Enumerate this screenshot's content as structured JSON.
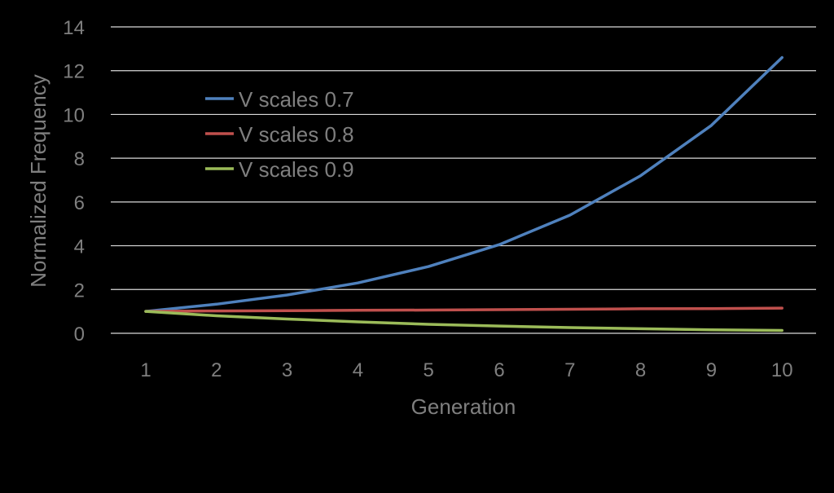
{
  "chart_data": {
    "type": "line",
    "title": "",
    "xlabel": "Generation",
    "ylabel": "Normalized Frequency",
    "x": [
      1,
      2,
      3,
      4,
      5,
      6,
      7,
      8,
      9,
      10
    ],
    "ylim": [
      0,
      14
    ],
    "yticks": [
      0,
      2,
      4,
      6,
      8,
      10,
      12,
      14
    ],
    "grid": true,
    "legend_position": "upper-left",
    "series": [
      {
        "name": "V scales 0.7",
        "color": "#4f81bd",
        "values": [
          1.0,
          1.33,
          1.75,
          2.3,
          3.05,
          4.05,
          5.4,
          7.2,
          9.5,
          12.6
        ]
      },
      {
        "name": "V scales 0.8",
        "color": "#c0504d",
        "values": [
          1.0,
          1.02,
          1.03,
          1.05,
          1.06,
          1.08,
          1.1,
          1.12,
          1.13,
          1.15
        ]
      },
      {
        "name": "V scales 0.9",
        "color": "#9bbb59",
        "values": [
          1.0,
          0.8,
          0.65,
          0.52,
          0.41,
          0.33,
          0.26,
          0.21,
          0.16,
          0.13
        ]
      }
    ]
  }
}
